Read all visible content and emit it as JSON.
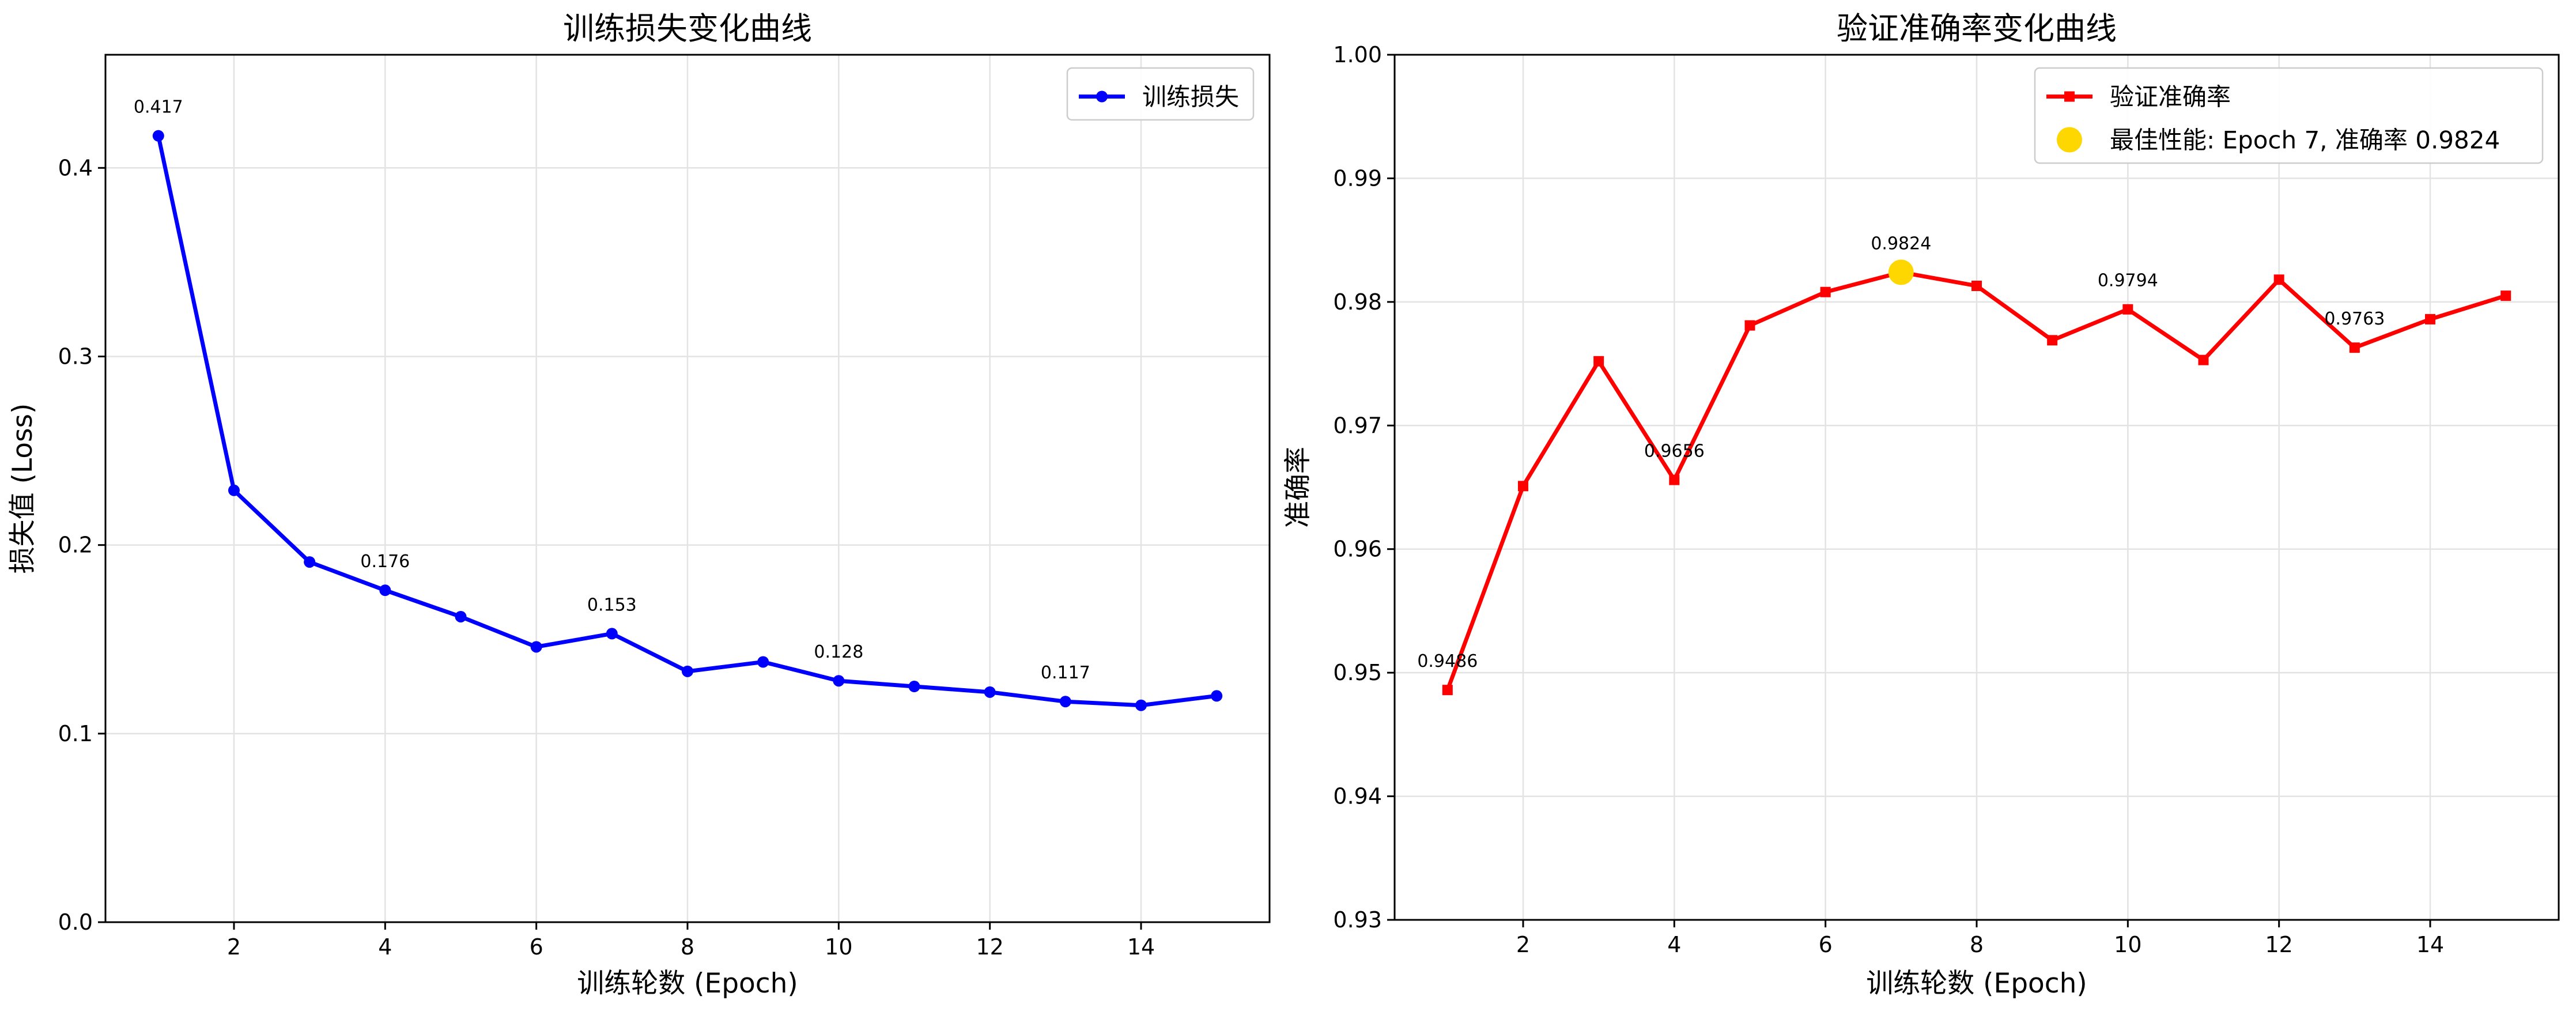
{
  "chart_data": [
    {
      "type": "line",
      "title": "训练损失变化曲线",
      "xlabel": "训练轮数 (Epoch)",
      "ylabel": "损失值 (Loss)",
      "x": [
        1,
        2,
        3,
        4,
        5,
        6,
        7,
        8,
        9,
        10,
        11,
        12,
        13,
        14,
        15
      ],
      "xlim": [
        0.3,
        15.7
      ],
      "ylim": [
        0.0,
        0.46
      ],
      "xticks": [
        2,
        4,
        6,
        8,
        10,
        12,
        14
      ],
      "yticks": [
        0.0,
        0.1,
        0.2,
        0.3,
        0.4
      ],
      "ytick_decimals": 1,
      "grid": true,
      "legend_position": "top-right",
      "series": [
        {
          "name": "训练损失",
          "color": "#0000ff",
          "marker": "circle",
          "values": [
            0.417,
            0.229,
            0.191,
            0.176,
            0.162,
            0.146,
            0.153,
            0.133,
            0.138,
            0.128,
            0.125,
            0.122,
            0.117,
            0.115,
            0.12
          ]
        }
      ],
      "annotations": [
        {
          "x": 1,
          "y": 0.417,
          "text": "0.417"
        },
        {
          "x": 4,
          "y": 0.176,
          "text": "0.176"
        },
        {
          "x": 7,
          "y": 0.153,
          "text": "0.153"
        },
        {
          "x": 10,
          "y": 0.128,
          "text": "0.128"
        },
        {
          "x": 13,
          "y": 0.117,
          "text": "0.117"
        }
      ]
    },
    {
      "type": "line",
      "title": "验证准确率变化曲线",
      "xlabel": "训练轮数 (Epoch)",
      "ylabel": "准确率",
      "x": [
        1,
        2,
        3,
        4,
        5,
        6,
        7,
        8,
        9,
        10,
        11,
        12,
        13,
        14,
        15
      ],
      "xlim": [
        0.3,
        15.7
      ],
      "ylim": [
        0.93,
        1.0
      ],
      "xticks": [
        2,
        4,
        6,
        8,
        10,
        12,
        14
      ],
      "yticks": [
        0.93,
        0.94,
        0.95,
        0.96,
        0.97,
        0.98,
        0.99,
        1.0
      ],
      "ytick_decimals": 2,
      "grid": true,
      "legend_position": "top-right",
      "series": [
        {
          "name": "验证准确率",
          "color": "#ff0000",
          "marker": "square",
          "values": [
            0.9486,
            0.9651,
            0.9752,
            0.9656,
            0.9781,
            0.9808,
            0.9824,
            0.9813,
            0.9769,
            0.9794,
            0.9753,
            0.9818,
            0.9763,
            0.9786,
            0.9805
          ]
        }
      ],
      "highlight": {
        "name": "最佳性能: Epoch 7, 准确率 0.9824",
        "x": 7,
        "y": 0.9824,
        "color": "#ffd700",
        "marker": "circle"
      },
      "annotations": [
        {
          "x": 1,
          "y": 0.9486,
          "text": "0.9486"
        },
        {
          "x": 4,
          "y": 0.9656,
          "text": "0.9656"
        },
        {
          "x": 7,
          "y": 0.9824,
          "text": "0.9824"
        },
        {
          "x": 10,
          "y": 0.9794,
          "text": "0.9794"
        },
        {
          "x": 13,
          "y": 0.9763,
          "text": "0.9763"
        }
      ]
    }
  ]
}
